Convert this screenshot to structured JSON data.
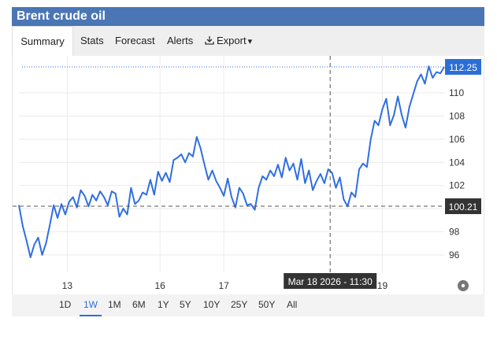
{
  "window": {
    "title": "Brent crude oil"
  },
  "tabs": [
    {
      "label": "Summary",
      "active": true
    },
    {
      "label": "Stats"
    },
    {
      "label": "Forecast"
    },
    {
      "label": "Alerts"
    },
    {
      "label": "Export",
      "icon": "download-icon",
      "caret": "▾"
    }
  ],
  "ranges": [
    {
      "label": "1D"
    },
    {
      "label": "1W",
      "active": true
    },
    {
      "label": "1M"
    },
    {
      "label": "6M"
    },
    {
      "label": "1Y"
    },
    {
      "label": "5Y"
    },
    {
      "label": "10Y"
    },
    {
      "label": "25Y"
    },
    {
      "label": "50Y"
    },
    {
      "label": "All"
    }
  ],
  "colors": {
    "header": "#4a76b5",
    "line": "#2f6fe0",
    "accent": "#2b6fd6",
    "gear": "#777777"
  },
  "chart_data": {
    "type": "line",
    "title": "",
    "xlabel": "",
    "ylabel": "",
    "ylim": [
      94.5,
      113.2
    ],
    "xlim": [
      0,
      110
    ],
    "y_ticks": [
      96,
      98,
      100,
      102,
      104,
      106,
      108,
      110
    ],
    "x_ticks": [
      {
        "x": 12.5,
        "label": "13"
      },
      {
        "x": 36.5,
        "label": "16"
      },
      {
        "x": 53,
        "label": "17"
      },
      {
        "x": 94,
        "label": "19"
      }
    ],
    "last_value_label": "112.25",
    "last_value": 112.25,
    "crosshair": {
      "x": 80.5,
      "y": 100.21,
      "y_label": "100.21",
      "x_label": "Mar 18 2026 - 11:30"
    },
    "series": [
      {
        "values": [
          [
            0,
            100.3
          ],
          [
            1,
            98.5
          ],
          [
            2,
            97.2
          ],
          [
            3,
            95.8
          ],
          [
            4,
            96.9
          ],
          [
            5,
            97.5
          ],
          [
            6,
            96.0
          ],
          [
            7,
            97.0
          ],
          [
            8,
            98.6
          ],
          [
            9,
            100.3
          ],
          [
            10,
            99.2
          ],
          [
            11,
            100.4
          ],
          [
            12,
            99.5
          ],
          [
            13,
            100.6
          ],
          [
            14,
            101.0
          ],
          [
            15,
            100.1
          ],
          [
            16,
            101.6
          ],
          [
            17,
            101.1
          ],
          [
            18,
            100.2
          ],
          [
            19,
            101.2
          ],
          [
            20,
            100.7
          ],
          [
            21,
            101.5
          ],
          [
            22,
            101.0
          ],
          [
            23,
            100.3
          ],
          [
            24,
            101.5
          ],
          [
            25,
            101.3
          ],
          [
            26,
            99.3
          ],
          [
            27,
            100.0
          ],
          [
            28,
            99.5
          ],
          [
            29,
            101.8
          ],
          [
            30,
            100.4
          ],
          [
            31,
            100.7
          ],
          [
            32,
            101.4
          ],
          [
            33,
            101.2
          ],
          [
            34,
            102.5
          ],
          [
            35,
            101.2
          ],
          [
            36,
            103.2
          ],
          [
            37,
            102.4
          ],
          [
            38,
            103.1
          ],
          [
            39,
            102.3
          ],
          [
            40,
            104.2
          ],
          [
            41,
            104.4
          ],
          [
            42,
            104.7
          ],
          [
            43,
            104.0
          ],
          [
            44,
            104.8
          ],
          [
            45,
            104.5
          ],
          [
            46,
            106.2
          ],
          [
            47,
            105.2
          ],
          [
            48,
            103.8
          ],
          [
            49,
            102.5
          ],
          [
            50,
            103.3
          ],
          [
            51,
            102.4
          ],
          [
            52,
            101.8
          ],
          [
            53,
            101.1
          ],
          [
            54,
            102.6
          ],
          [
            55,
            101.0
          ],
          [
            56,
            100.1
          ],
          [
            57,
            101.8
          ],
          [
            58,
            101.3
          ],
          [
            59,
            100.3
          ],
          [
            60,
            100.4
          ],
          [
            61,
            99.9
          ],
          [
            62,
            101.8
          ],
          [
            63,
            102.8
          ],
          [
            64,
            102.5
          ],
          [
            65,
            103.3
          ],
          [
            66,
            102.8
          ],
          [
            67,
            103.8
          ],
          [
            68,
            102.7
          ],
          [
            69,
            104.4
          ],
          [
            70,
            103.3
          ],
          [
            71,
            103.9
          ],
          [
            72,
            102.5
          ],
          [
            73,
            104.3
          ],
          [
            74,
            102.2
          ],
          [
            75,
            103.3
          ],
          [
            76,
            101.6
          ],
          [
            77,
            102.4
          ],
          [
            78,
            103.0
          ],
          [
            79,
            102.2
          ],
          [
            80,
            103.4
          ],
          [
            81,
            103.1
          ],
          [
            82,
            101.8
          ],
          [
            83,
            102.7
          ],
          [
            84,
            100.8
          ],
          [
            85,
            100.2
          ],
          [
            86,
            101.4
          ],
          [
            87,
            101.0
          ],
          [
            88,
            103.4
          ],
          [
            89,
            103.9
          ],
          [
            90,
            103.6
          ],
          [
            91,
            106.0
          ],
          [
            92,
            107.6
          ],
          [
            93,
            107.2
          ],
          [
            94,
            108.6
          ],
          [
            95,
            109.5
          ],
          [
            96,
            107.2
          ],
          [
            97,
            108.1
          ],
          [
            98,
            109.7
          ],
          [
            99,
            108.1
          ],
          [
            100,
            107.0
          ],
          [
            101,
            108.8
          ],
          [
            102,
            109.9
          ],
          [
            103,
            111.0
          ],
          [
            104,
            111.6
          ],
          [
            105,
            110.8
          ],
          [
            106,
            112.3
          ],
          [
            107,
            111.3
          ],
          [
            108,
            111.8
          ],
          [
            109,
            111.7
          ],
          [
            110,
            112.25
          ]
        ]
      }
    ]
  }
}
